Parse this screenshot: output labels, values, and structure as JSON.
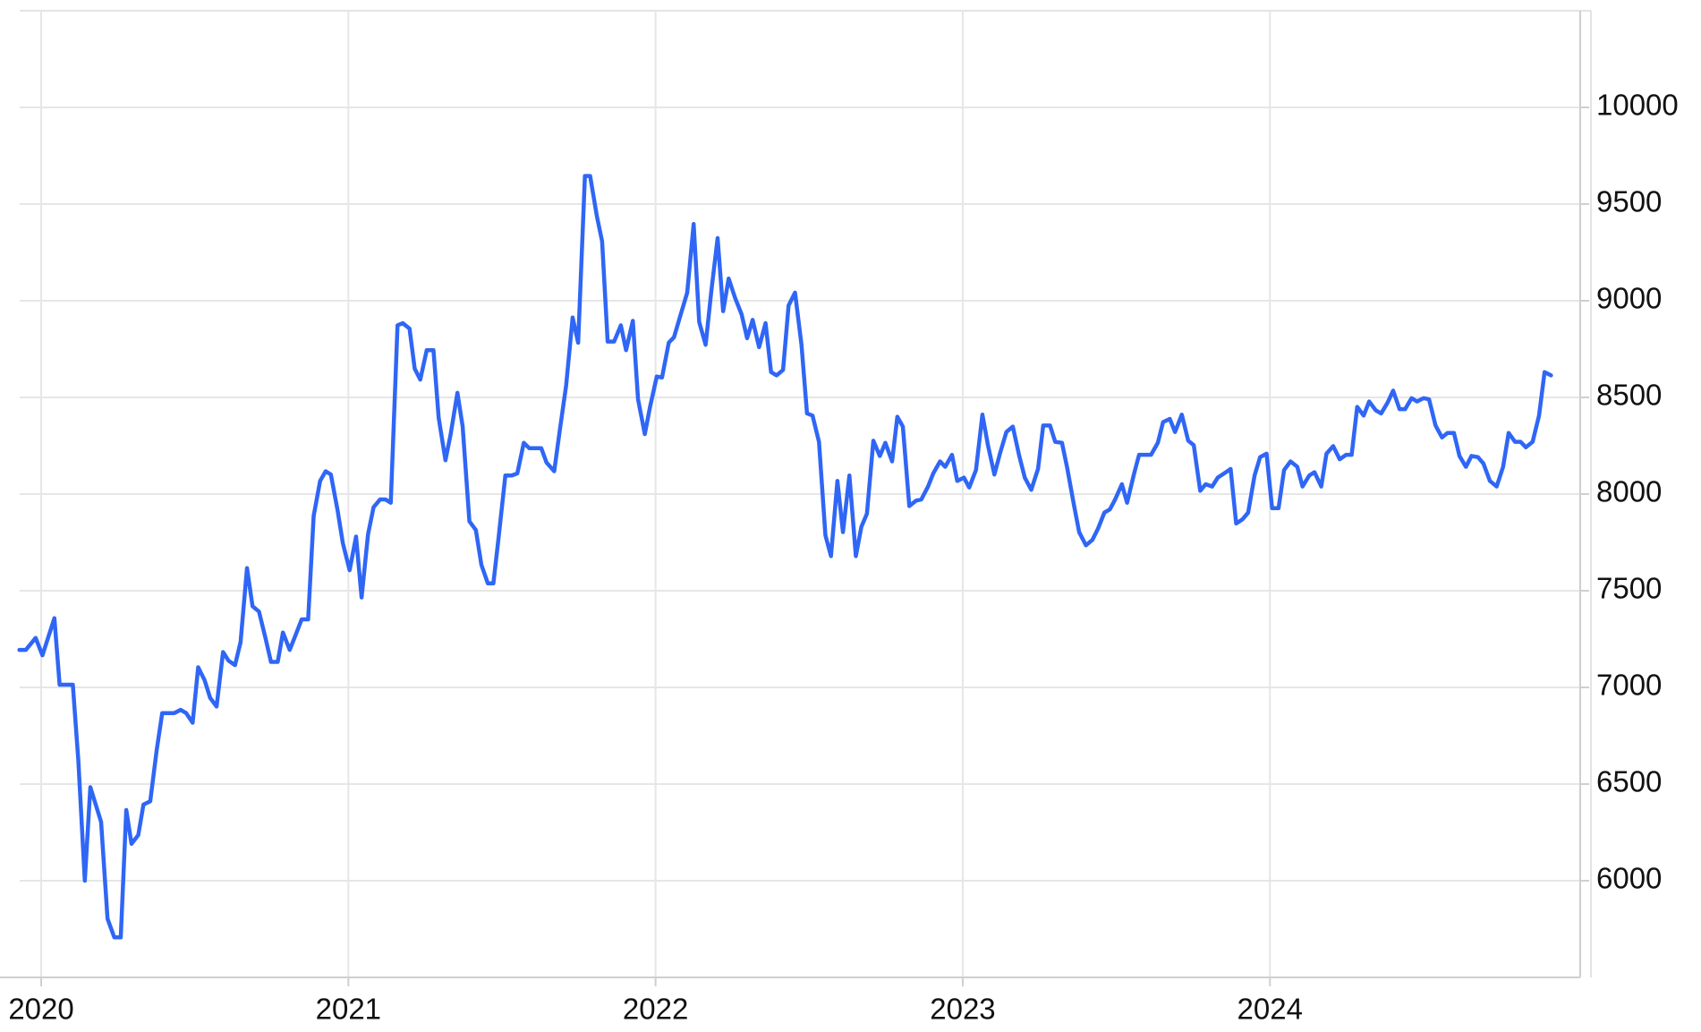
{
  "chart_data": {
    "type": "line",
    "xlim": [
      2019.93,
      2025.01
    ],
    "xticks": [
      2020,
      2021,
      2022,
      2023,
      2024
    ],
    "ylim": [
      5500,
      10500
    ],
    "yticks": [
      6000,
      6500,
      7000,
      7500,
      8000,
      8500,
      9000,
      9500,
      10000
    ],
    "grid": true,
    "series": [
      {
        "color": "#2f66f5",
        "x": [
          2019.929,
          2019.95,
          2019.982,
          2020.004,
          2020.043,
          2020.06,
          2020.103,
          2020.121,
          2020.142,
          2020.16,
          2020.195,
          2020.216,
          2020.238,
          2020.259,
          2020.277,
          2020.294,
          2020.316,
          2020.333,
          2020.355,
          2020.376,
          2020.394,
          2020.433,
          2020.454,
          2020.472,
          2020.493,
          2020.511,
          2020.532,
          2020.55,
          2020.571,
          2020.592,
          2020.61,
          2020.631,
          2020.649,
          2020.67,
          2020.688,
          2020.709,
          2020.73,
          2020.748,
          2020.77,
          2020.787,
          2020.809,
          2020.826,
          2020.848,
          2020.869,
          2020.887,
          2020.908,
          2020.926,
          2020.943,
          2020.965,
          2020.982,
          2021.004,
          2021.025,
          2021.043,
          2021.064,
          2021.082,
          2021.103,
          2021.121,
          2021.138,
          2021.16,
          2021.177,
          2021.199,
          2021.216,
          2021.234,
          2021.255,
          2021.277,
          2021.294,
          2021.316,
          2021.333,
          2021.355,
          2021.372,
          2021.394,
          2021.415,
          2021.433,
          2021.454,
          2021.472,
          2021.489,
          2021.511,
          2021.532,
          2021.55,
          2021.571,
          2021.589,
          2021.628,
          2021.645,
          2021.67,
          2021.688,
          2021.709,
          2021.73,
          2021.748,
          2021.77,
          2021.787,
          2021.809,
          2021.826,
          2021.844,
          2021.865,
          2021.887,
          2021.904,
          2021.926,
          2021.943,
          2021.965,
          2021.982,
          2022.004,
          2022.021,
          2022.043,
          2022.06,
          2022.082,
          2022.103,
          2022.124,
          2022.142,
          2022.163,
          2022.181,
          2022.202,
          2022.22,
          2022.238,
          2022.259,
          2022.28,
          2022.298,
          2022.316,
          2022.337,
          2022.358,
          2022.376,
          2022.394,
          2022.415,
          2022.433,
          2022.454,
          2022.475,
          2022.493,
          2022.511,
          2022.532,
          2022.553,
          2022.571,
          2022.592,
          2022.61,
          2022.631,
          2022.652,
          2022.67,
          2022.688,
          2022.709,
          2022.73,
          2022.748,
          2022.77,
          2022.787,
          2022.805,
          2022.826,
          2022.848,
          2022.865,
          2022.887,
          2022.904,
          2022.926,
          2022.943,
          2022.965,
          2022.982,
          2023.004,
          2023.021,
          2023.043,
          2023.064,
          2023.082,
          2023.103,
          2023.121,
          2023.142,
          2023.163,
          2023.184,
          2023.202,
          2023.223,
          2023.245,
          2023.262,
          2023.284,
          2023.301,
          2023.323,
          2023.34,
          2023.362,
          2023.379,
          2023.401,
          2023.422,
          2023.44,
          2023.461,
          2023.479,
          2023.496,
          2023.518,
          2023.535,
          2023.557,
          2023.574,
          2023.613,
          2023.635,
          2023.652,
          2023.674,
          2023.691,
          2023.713,
          2023.734,
          2023.752,
          2023.773,
          2023.791,
          2023.812,
          2023.83,
          2023.851,
          2023.872,
          2023.89,
          2023.911,
          2023.929,
          2023.95,
          2023.968,
          2023.989,
          2024.007,
          2024.028,
          2024.046,
          2024.067,
          2024.089,
          2024.106,
          2024.128,
          2024.145,
          2024.167,
          2024.184,
          2024.206,
          2024.227,
          2024.248,
          2024.266,
          2024.284,
          2024.305,
          2024.323,
          2024.344,
          2024.362,
          2024.383,
          2024.401,
          2024.422,
          2024.44,
          2024.461,
          2024.479,
          2024.5,
          2024.518,
          2024.539,
          2024.56,
          2024.578,
          2024.599,
          2024.617,
          2024.638,
          2024.656,
          2024.677,
          2024.695,
          2024.716,
          2024.738,
          2024.759,
          2024.777,
          2024.798,
          2024.816,
          2024.833,
          2024.855,
          2024.876,
          2024.894,
          2024.915
        ],
        "values": [
          7194,
          7194,
          7256,
          7166,
          7358,
          7014,
          7014,
          6620,
          6000,
          6484,
          6304,
          5803,
          5707,
          5707,
          6366,
          6191,
          6236,
          6394,
          6411,
          6676,
          6867,
          6867,
          6884,
          6867,
          6817,
          7104,
          7037,
          6946,
          6901,
          7183,
          7138,
          7115,
          7234,
          7617,
          7420,
          7392,
          7256,
          7132,
          7132,
          7284,
          7194,
          7262,
          7352,
          7352,
          7887,
          8068,
          8118,
          8101,
          7915,
          7746,
          7606,
          7780,
          7465,
          7792,
          7932,
          7972,
          7972,
          7955,
          8873,
          8884,
          8856,
          8648,
          8592,
          8744,
          8744,
          8394,
          8175,
          8310,
          8524,
          8349,
          7859,
          7814,
          7634,
          7538,
          7538,
          7775,
          8096,
          8096,
          8107,
          8265,
          8237,
          8237,
          8163,
          8118,
          8327,
          8563,
          8913,
          8783,
          9645,
          9645,
          9437,
          9307,
          8789,
          8789,
          8873,
          8744,
          8896,
          8490,
          8310,
          8451,
          8608,
          8603,
          8783,
          8811,
          8930,
          9042,
          9397,
          8890,
          8772,
          9042,
          9324,
          8946,
          9115,
          9014,
          8930,
          8806,
          8901,
          8760,
          8884,
          8631,
          8614,
          8642,
          8975,
          9042,
          8772,
          8417,
          8406,
          8270,
          7786,
          7679,
          8068,
          7803,
          8096,
          7679,
          7831,
          7898,
          8276,
          8197,
          8265,
          8169,
          8400,
          8349,
          7938,
          7966,
          7972,
          8039,
          8107,
          8169,
          8141,
          8203,
          8068,
          8085,
          8034,
          8124,
          8411,
          8253,
          8101,
          8209,
          8321,
          8349,
          8197,
          8085,
          8022,
          8130,
          8355,
          8355,
          8270,
          8265,
          8135,
          7943,
          7803,
          7735,
          7763,
          7820,
          7904,
          7921,
          7972,
          8051,
          7955,
          8101,
          8203,
          8203,
          8265,
          8372,
          8389,
          8321,
          8411,
          8276,
          8253,
          8017,
          8051,
          8039,
          8085,
          8107,
          8130,
          7848,
          7870,
          7904,
          8096,
          8191,
          8209,
          7927,
          7927,
          8124,
          8169,
          8141,
          8039,
          8096,
          8113,
          8039,
          8209,
          8248,
          8180,
          8203,
          8203,
          8451,
          8406,
          8479,
          8434,
          8417,
          8473,
          8535,
          8439,
          8439,
          8496,
          8479,
          8496,
          8490,
          8355,
          8293,
          8316,
          8316,
          8197,
          8141,
          8197,
          8191,
          8158,
          8068,
          8039,
          8141,
          8316,
          8270,
          8270,
          8242,
          8270,
          8406,
          8631,
          8614
        ]
      }
    ]
  }
}
